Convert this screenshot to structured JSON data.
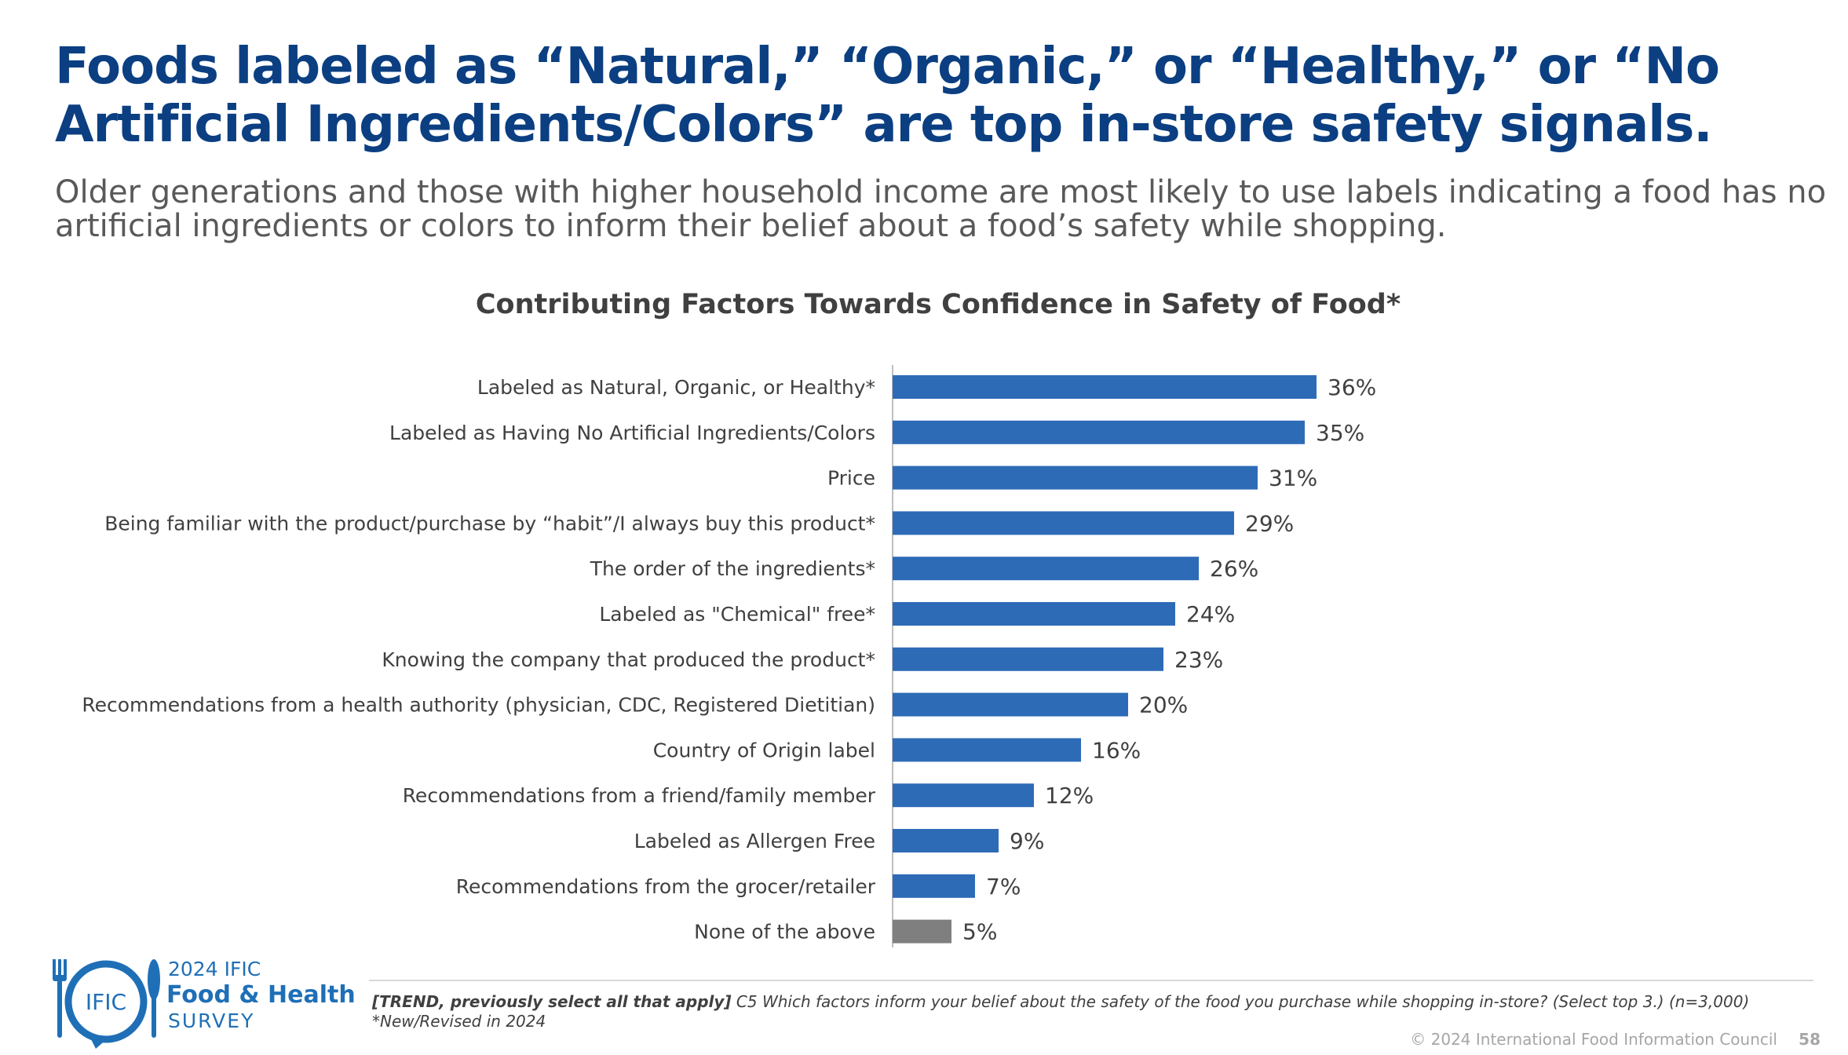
{
  "slide": {
    "title": "Foods labeled as “Natural,” “Organic,” or “Healthy,” or “No Artificial Ingredients/Colors” are top in-store safety signals.",
    "subtitle": "Older generations and those with higher household income are most likely to use labels indicating a food has no artificial ingredients or colors to inform their belief about a food’s safety while shopping."
  },
  "chart_data": {
    "type": "bar",
    "orientation": "horizontal",
    "title": "Contributing Factors Towards Confidence in Safety of Food*",
    "categories": [
      "Labeled as Natural, Organic, or Healthy*",
      "Labeled as Having No Artificial Ingredients/Colors",
      "Price",
      "Being familiar with the product/purchase by “habit”/I always buy this product*",
      "The order of the ingredients*",
      "Labeled as \"Chemical\" free*",
      "Knowing the company that produced the product*",
      "Recommendations from a health authority (physician, CDC, Registered Dietitian)",
      "Country of Origin label",
      "Recommendations from a friend/family member",
      "Labeled as Allergen Free",
      "Recommendations from the grocer/retailer",
      "None of the above"
    ],
    "values": [
      36,
      35,
      31,
      29,
      26,
      24,
      23,
      20,
      16,
      12,
      9,
      7,
      5
    ],
    "value_labels": [
      "36%",
      "35%",
      "31%",
      "29%",
      "26%",
      "24%",
      "23%",
      "20%",
      "16%",
      "12%",
      "9%",
      "7%",
      "5%"
    ],
    "unit": "%",
    "bar_colors": [
      "#2e6bb7",
      "#2e6bb7",
      "#2e6bb7",
      "#2e6bb7",
      "#2e6bb7",
      "#2e6bb7",
      "#2e6bb7",
      "#2e6bb7",
      "#2e6bb7",
      "#2e6bb7",
      "#2e6bb7",
      "#2e6bb7",
      "#7f7f7f"
    ],
    "grid": false,
    "legend": "none"
  },
  "branding": {
    "logo_mark": "IFIC",
    "logo_year": "2024 IFIC",
    "logo_name": "Food & Health",
    "logo_survey": "SURVEY",
    "logo_color": "#1f6fb7",
    "logo_icon": "fork-and-spoon-icon"
  },
  "footer": {
    "note_bold": "[TREND, previously select all that apply]",
    "note_question": "C5 Which factors inform your belief about the safety of the food you purchase while shopping in-store? (Select top 3.) (n=3,000)",
    "note_new": "*New/Revised in 2024",
    "copyright": "© 2024 International Food Information Council",
    "page_number": "58"
  }
}
